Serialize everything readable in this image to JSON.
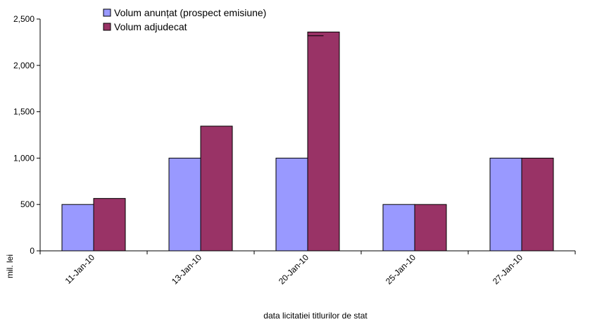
{
  "chart_data": {
    "type": "bar",
    "categories": [
      "11-Jan-10",
      "13-Jan-10",
      "20-Jan-10",
      "25-Jan-10",
      "27-Jan-10"
    ],
    "series": [
      {
        "name": "Volum anunțat (prospect emisiune)",
        "values": [
          500,
          1000,
          1000,
          500,
          1000
        ],
        "color": "#9999ff"
      },
      {
        "name": "Volum adjudecat",
        "values": [
          565,
          1345,
          2360,
          500,
          1000
        ],
        "color": "#993366"
      }
    ],
    "overlay_segments": [
      {
        "category": "20-Jan-10",
        "series": "Volum adjudecat",
        "value": 2320
      }
    ],
    "ylim": [
      0,
      2500
    ],
    "yticks": [
      0,
      500,
      1000,
      1500,
      2000,
      2500
    ],
    "ytick_labels": [
      "0",
      "500",
      "1,000",
      "1,500",
      "2,000",
      "2,500"
    ],
    "xlabel": "data  licitatiei  titlurilor de stat",
    "ylabel": "mil. lei",
    "legend_position": "top-left",
    "grid": false
  }
}
